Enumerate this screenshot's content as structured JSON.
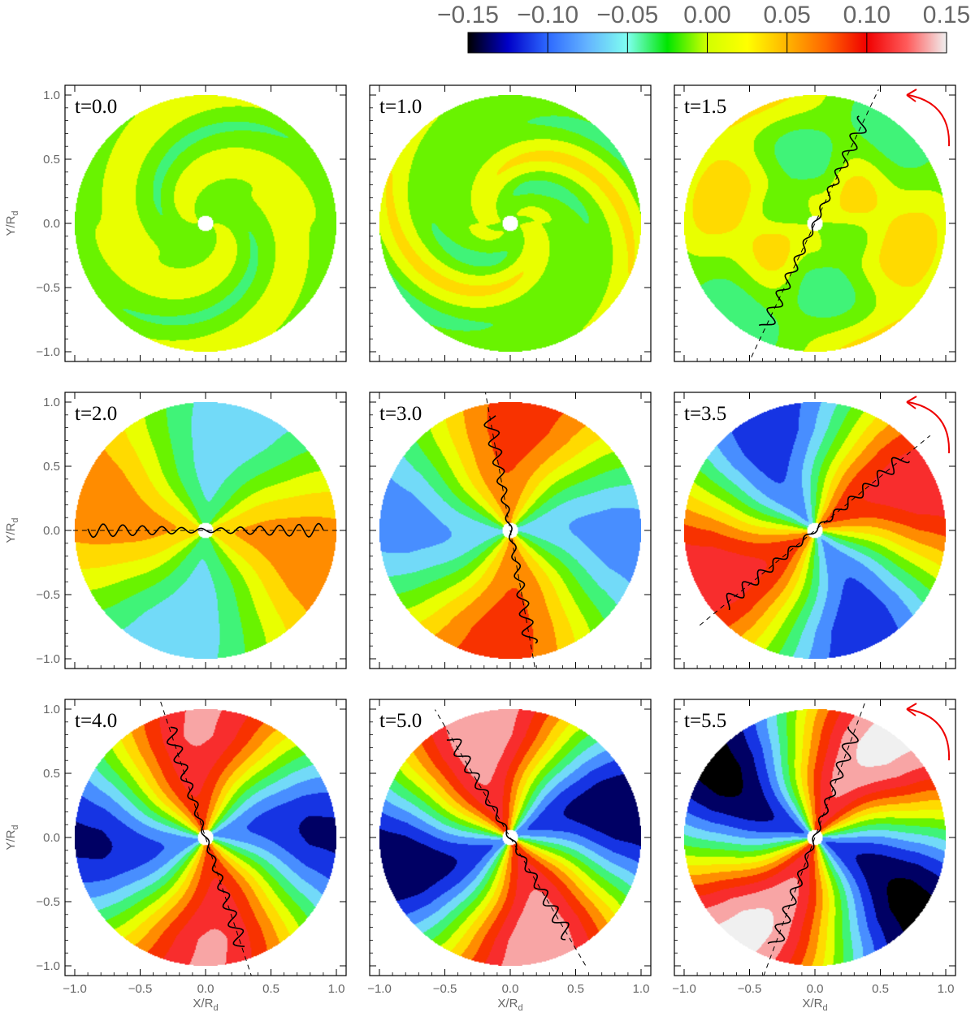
{
  "colorbar": {
    "ticks": [
      "−0.15",
      "−0.10",
      "−0.05",
      "0.00",
      "0.05",
      "0.10",
      "0.15"
    ],
    "colors": [
      "#000000",
      "#0000c8",
      "#2d69ff",
      "#64b4ff",
      "#7ffff0",
      "#00e600",
      "#d2ff00",
      "#ffff00",
      "#ffb400",
      "#ff6400",
      "#f00000",
      "#ff5a5a",
      "#f0f0f0"
    ]
  },
  "chart_data": {
    "type": "heatmap",
    "xlabel": "X/R",
    "xlabel_sub": "d",
    "ylabel": "Y/R",
    "ylabel_sub": "d",
    "xlim": [
      -1.0,
      1.0
    ],
    "ylim": [
      -1.0,
      1.0
    ],
    "x_tick_labels": [
      "−1.0",
      "−0.5",
      "0.0",
      "0.5",
      "1.0"
    ],
    "y_tick_labels": [
      "−1.0",
      "−0.5",
      "0.0",
      "0.5",
      "1.0"
    ],
    "colorbar_range": [
      -0.15,
      0.15
    ],
    "panels": [
      {
        "label": "t=0.0",
        "time": 0.0,
        "pattern": "spiral",
        "amplitude": 0.025,
        "phase_deg": 0,
        "line_angle_deg": null,
        "rotation_arrow": false
      },
      {
        "label": "t=1.0",
        "time": 1.0,
        "pattern": "spiral",
        "amplitude": 0.035,
        "phase_deg": 40,
        "line_angle_deg": null,
        "rotation_arrow": false
      },
      {
        "label": "t=1.5",
        "time": 1.5,
        "pattern": "spiral-two-arm",
        "amplitude": 0.045,
        "phase_deg": 70,
        "line_angle_deg": 65,
        "rotation_arrow": true
      },
      {
        "label": "t=2.0",
        "time": 2.0,
        "pattern": "two-arm",
        "amplitude": 0.07,
        "phase_deg": 0,
        "line_angle_deg": 0,
        "rotation_arrow": false
      },
      {
        "label": "t=3.0",
        "time": 3.0,
        "pattern": "two-arm",
        "amplitude": 0.09,
        "phase_deg": 100,
        "line_angle_deg": 100,
        "rotation_arrow": false
      },
      {
        "label": "t=3.5",
        "time": 3.5,
        "pattern": "two-arm",
        "amplitude": 0.12,
        "phase_deg": 40,
        "line_angle_deg": 40,
        "rotation_arrow": true
      },
      {
        "label": "t=4.0",
        "time": 4.0,
        "pattern": "two-arm",
        "amplitude": 0.13,
        "phase_deg": 108,
        "line_angle_deg": 108,
        "rotation_arrow": false
      },
      {
        "label": "t=5.0",
        "time": 5.0,
        "pattern": "two-arm",
        "amplitude": 0.15,
        "phase_deg": 120,
        "line_angle_deg": 120,
        "rotation_arrow": false
      },
      {
        "label": "t=5.5",
        "time": 5.5,
        "pattern": "two-arm",
        "amplitude": 0.16,
        "phase_deg": 70,
        "line_angle_deg": 70,
        "rotation_arrow": true
      }
    ]
  }
}
